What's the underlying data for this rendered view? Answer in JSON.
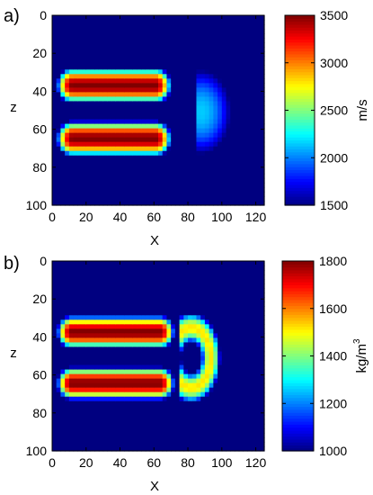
{
  "chart_data": [
    {
      "type": "heatmap",
      "panel_label": "a)",
      "title": "",
      "xlabel": "X",
      "ylabel": "z",
      "xlim": [
        0,
        125
      ],
      "ylim": [
        100,
        0
      ],
      "xticks": [
        0,
        20,
        40,
        60,
        80,
        100,
        120
      ],
      "yticks": [
        0,
        20,
        40,
        60,
        80,
        100
      ],
      "colorbar": {
        "label": "m/s",
        "range": [
          1500,
          3500
        ],
        "ticks": [
          1500,
          2000,
          2500,
          3000,
          3500
        ]
      },
      "background_value": 1500,
      "features": [
        {
          "shape": "bar",
          "x": [
            5,
            68
          ],
          "z": [
            30,
            44
          ],
          "peak": 3500
        },
        {
          "shape": "bar",
          "x": [
            5,
            68
          ],
          "z": [
            58,
            72
          ],
          "peak": 3500
        },
        {
          "shape": "cap",
          "center": [
            88,
            51
          ],
          "radius": [
            17,
            22
          ],
          "peak": 2150
        }
      ]
    },
    {
      "type": "heatmap",
      "panel_label": "b)",
      "title": "",
      "xlabel": "X",
      "ylabel": "z",
      "xlim": [
        0,
        125
      ],
      "ylim": [
        100,
        0
      ],
      "xticks": [
        0,
        20,
        40,
        60,
        80,
        100,
        120
      ],
      "yticks": [
        0,
        20,
        40,
        60,
        80,
        100
      ],
      "colorbar": {
        "label": "kg/m",
        "label_superscript": "3",
        "range": [
          1000,
          1800
        ],
        "ticks": [
          1000,
          1200,
          1400,
          1600,
          1800
        ]
      },
      "background_value": 1000,
      "features": [
        {
          "shape": "bar",
          "x": [
            5,
            70
          ],
          "z": [
            31,
            44
          ],
          "peak": 1800
        },
        {
          "shape": "bar",
          "x": [
            5,
            70
          ],
          "z": [
            58,
            71
          ],
          "peak": 1800
        },
        {
          "shape": "ring",
          "center": [
            82,
            51
          ],
          "radius": [
            16,
            22
          ],
          "peak": 1520
        }
      ]
    }
  ]
}
